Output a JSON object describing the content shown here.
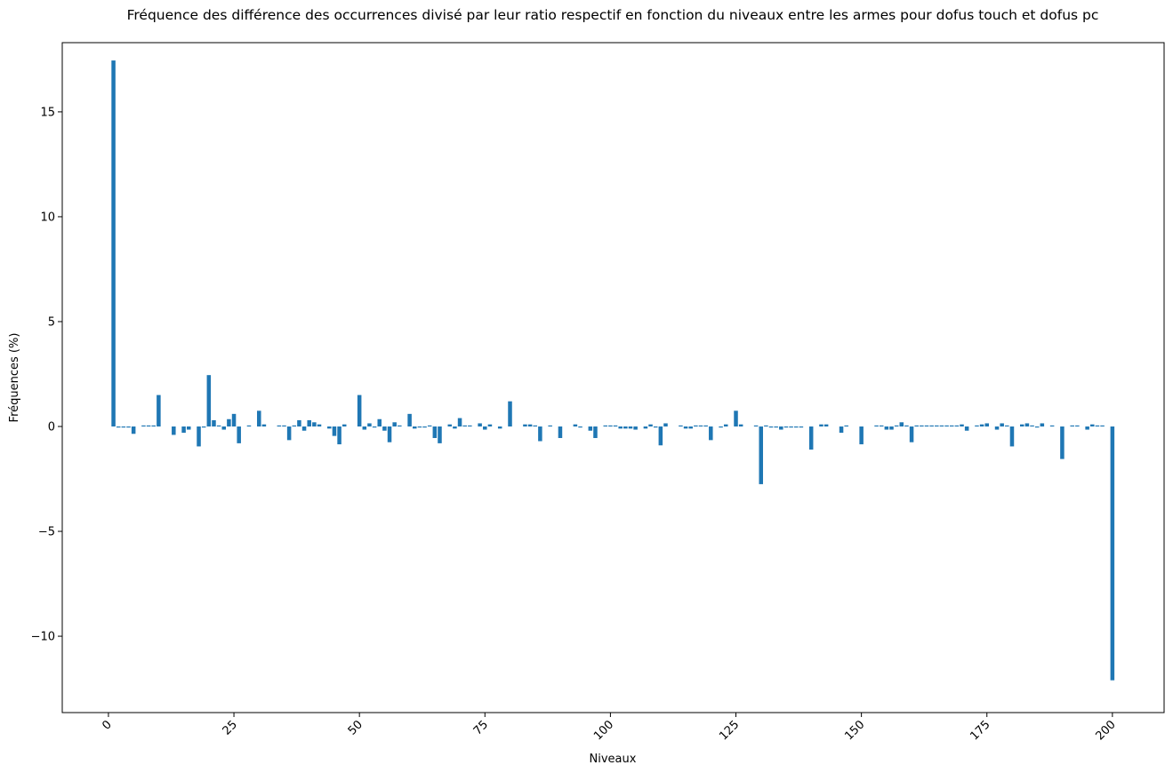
{
  "chart_data": {
    "type": "bar",
    "title": "Fréquence des différence des occurrences divisé par leur ratio respectif en fonction du niveaux entre les armes pour dofus touch et dofus pc",
    "xlabel": "Niveaux",
    "ylabel": "Fréquences (%)",
    "color": "#1f77b4",
    "x": [
      1,
      2,
      3,
      4,
      5,
      6,
      7,
      8,
      9,
      10,
      11,
      12,
      13,
      14,
      15,
      16,
      17,
      18,
      19,
      20,
      21,
      22,
      23,
      24,
      25,
      26,
      27,
      28,
      29,
      30,
      31,
      32,
      33,
      34,
      35,
      36,
      37,
      38,
      39,
      40,
      41,
      42,
      43,
      44,
      45,
      46,
      47,
      48,
      49,
      50,
      51,
      52,
      53,
      54,
      55,
      56,
      57,
      58,
      59,
      60,
      61,
      62,
      63,
      64,
      65,
      66,
      67,
      68,
      69,
      70,
      71,
      72,
      73,
      74,
      75,
      76,
      77,
      78,
      79,
      80,
      81,
      82,
      83,
      84,
      85,
      86,
      87,
      88,
      89,
      90,
      91,
      92,
      93,
      94,
      95,
      96,
      97,
      98,
      99,
      100,
      101,
      102,
      103,
      104,
      105,
      106,
      107,
      108,
      109,
      110,
      111,
      112,
      113,
      114,
      115,
      116,
      117,
      118,
      119,
      120,
      121,
      122,
      123,
      124,
      125,
      126,
      127,
      128,
      129,
      130,
      131,
      132,
      133,
      134,
      135,
      136,
      137,
      138,
      139,
      140,
      141,
      142,
      143,
      144,
      145,
      146,
      147,
      148,
      149,
      150,
      151,
      152,
      153,
      154,
      155,
      156,
      157,
      158,
      159,
      160,
      161,
      162,
      163,
      164,
      165,
      166,
      167,
      168,
      169,
      170,
      171,
      172,
      173,
      174,
      175,
      176,
      177,
      178,
      179,
      180,
      181,
      182,
      183,
      184,
      185,
      186,
      187,
      188,
      189,
      190,
      191,
      192,
      193,
      194,
      195,
      196,
      197,
      198,
      199,
      200
    ],
    "values": [
      17.45,
      -0.05,
      -0.05,
      -0.05,
      -0.35,
      0,
      0.05,
      0.05,
      0.05,
      1.5,
      0,
      0,
      -0.4,
      0,
      -0.3,
      -0.15,
      0,
      -0.95,
      -0.05,
      2.45,
      0.3,
      0.05,
      -0.15,
      0.35,
      0.6,
      -0.8,
      0,
      0.05,
      0,
      0.75,
      0.1,
      0,
      0,
      0.05,
      0.05,
      -0.65,
      0.05,
      0.3,
      -0.2,
      0.3,
      0.2,
      0.1,
      0,
      -0.1,
      -0.45,
      -0.85,
      0.1,
      0,
      0,
      1.5,
      -0.15,
      0.15,
      -0.05,
      0.35,
      -0.2,
      -0.75,
      0.2,
      0.05,
      0,
      0.6,
      -0.1,
      -0.05,
      -0.05,
      0.05,
      -0.55,
      -0.8,
      0,
      0.1,
      -0.1,
      0.4,
      0.05,
      0.05,
      0,
      0.15,
      -0.15,
      0.1,
      0,
      -0.1,
      0,
      1.2,
      0,
      0,
      0.1,
      0.1,
      0.05,
      -0.7,
      0,
      0.05,
      0,
      -0.55,
      0,
      0,
      0.1,
      -0.05,
      0,
      -0.2,
      -0.55,
      0,
      0.05,
      0.05,
      0.05,
      -0.1,
      -0.1,
      -0.1,
      -0.15,
      0,
      -0.1,
      0.1,
      -0.05,
      -0.9,
      0.15,
      0,
      0,
      0.05,
      -0.1,
      -0.1,
      0.05,
      0.05,
      0.05,
      -0.65,
      0,
      -0.05,
      0.1,
      0,
      0.75,
      0.1,
      0,
      0,
      0.05,
      -2.75,
      0.05,
      -0.05,
      -0.05,
      -0.15,
      -0.05,
      -0.05,
      -0.05,
      -0.05,
      0,
      -1.1,
      0,
      0.1,
      0.1,
      0,
      0,
      -0.3,
      0.05,
      0,
      0,
      -0.85,
      0,
      0,
      0.05,
      0.05,
      -0.15,
      -0.15,
      0.05,
      0.2,
      0.05,
      -0.75,
      0.05,
      0.05,
      0.05,
      0.05,
      0.05,
      0.05,
      0.05,
      0.05,
      0.05,
      0.1,
      -0.2,
      0,
      0.05,
      0.1,
      0.15,
      0,
      -0.15,
      0.15,
      0.05,
      -0.95,
      0,
      0.1,
      0.15,
      0.05,
      -0.05,
      0.15,
      0,
      0.05,
      0,
      -1.55,
      0,
      0.05,
      0.05,
      0,
      -0.15,
      0.1,
      0.05,
      0.05,
      0,
      -12.1
    ],
    "xlim": [
      -9.2,
      210.3
    ],
    "ylim": [
      -13.64,
      18.3
    ],
    "xticks": [
      0,
      25,
      50,
      75,
      100,
      125,
      150,
      175,
      200
    ],
    "yticks": [
      {
        "value": -10,
        "label": "−10"
      },
      {
        "value": -5,
        "label": "−5"
      },
      0,
      5,
      10,
      15
    ]
  }
}
